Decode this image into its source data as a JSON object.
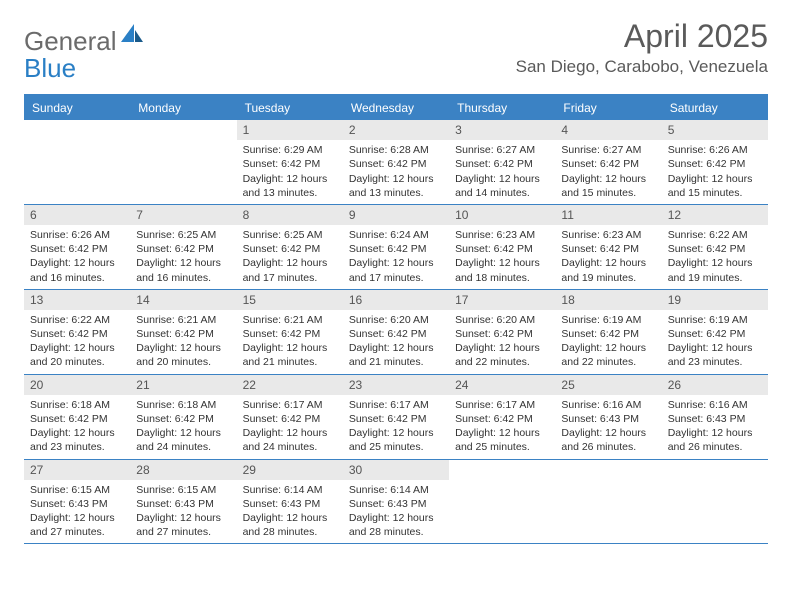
{
  "logo": {
    "text1": "General",
    "text2": "Blue"
  },
  "title": "April 2025",
  "location": "San Diego, Carabobo, Venezuela",
  "colors": {
    "header_bg": "#3b82c4",
    "header_text": "#ffffff",
    "daynum_bg": "#e9e9e9",
    "border": "#3b82c4",
    "logo_gray": "#6b6b6b",
    "logo_blue": "#2a7fc5"
  },
  "day_names": [
    "Sunday",
    "Monday",
    "Tuesday",
    "Wednesday",
    "Thursday",
    "Friday",
    "Saturday"
  ],
  "weeks": [
    [
      {
        "empty": true
      },
      {
        "empty": true
      },
      {
        "num": "1",
        "sunrise": "Sunrise: 6:29 AM",
        "sunset": "Sunset: 6:42 PM",
        "daylight": "Daylight: 12 hours and 13 minutes."
      },
      {
        "num": "2",
        "sunrise": "Sunrise: 6:28 AM",
        "sunset": "Sunset: 6:42 PM",
        "daylight": "Daylight: 12 hours and 13 minutes."
      },
      {
        "num": "3",
        "sunrise": "Sunrise: 6:27 AM",
        "sunset": "Sunset: 6:42 PM",
        "daylight": "Daylight: 12 hours and 14 minutes."
      },
      {
        "num": "4",
        "sunrise": "Sunrise: 6:27 AM",
        "sunset": "Sunset: 6:42 PM",
        "daylight": "Daylight: 12 hours and 15 minutes."
      },
      {
        "num": "5",
        "sunrise": "Sunrise: 6:26 AM",
        "sunset": "Sunset: 6:42 PM",
        "daylight": "Daylight: 12 hours and 15 minutes."
      }
    ],
    [
      {
        "num": "6",
        "sunrise": "Sunrise: 6:26 AM",
        "sunset": "Sunset: 6:42 PM",
        "daylight": "Daylight: 12 hours and 16 minutes."
      },
      {
        "num": "7",
        "sunrise": "Sunrise: 6:25 AM",
        "sunset": "Sunset: 6:42 PM",
        "daylight": "Daylight: 12 hours and 16 minutes."
      },
      {
        "num": "8",
        "sunrise": "Sunrise: 6:25 AM",
        "sunset": "Sunset: 6:42 PM",
        "daylight": "Daylight: 12 hours and 17 minutes."
      },
      {
        "num": "9",
        "sunrise": "Sunrise: 6:24 AM",
        "sunset": "Sunset: 6:42 PM",
        "daylight": "Daylight: 12 hours and 17 minutes."
      },
      {
        "num": "10",
        "sunrise": "Sunrise: 6:23 AM",
        "sunset": "Sunset: 6:42 PM",
        "daylight": "Daylight: 12 hours and 18 minutes."
      },
      {
        "num": "11",
        "sunrise": "Sunrise: 6:23 AM",
        "sunset": "Sunset: 6:42 PM",
        "daylight": "Daylight: 12 hours and 19 minutes."
      },
      {
        "num": "12",
        "sunrise": "Sunrise: 6:22 AM",
        "sunset": "Sunset: 6:42 PM",
        "daylight": "Daylight: 12 hours and 19 minutes."
      }
    ],
    [
      {
        "num": "13",
        "sunrise": "Sunrise: 6:22 AM",
        "sunset": "Sunset: 6:42 PM",
        "daylight": "Daylight: 12 hours and 20 minutes."
      },
      {
        "num": "14",
        "sunrise": "Sunrise: 6:21 AM",
        "sunset": "Sunset: 6:42 PM",
        "daylight": "Daylight: 12 hours and 20 minutes."
      },
      {
        "num": "15",
        "sunrise": "Sunrise: 6:21 AM",
        "sunset": "Sunset: 6:42 PM",
        "daylight": "Daylight: 12 hours and 21 minutes."
      },
      {
        "num": "16",
        "sunrise": "Sunrise: 6:20 AM",
        "sunset": "Sunset: 6:42 PM",
        "daylight": "Daylight: 12 hours and 21 minutes."
      },
      {
        "num": "17",
        "sunrise": "Sunrise: 6:20 AM",
        "sunset": "Sunset: 6:42 PM",
        "daylight": "Daylight: 12 hours and 22 minutes."
      },
      {
        "num": "18",
        "sunrise": "Sunrise: 6:19 AM",
        "sunset": "Sunset: 6:42 PM",
        "daylight": "Daylight: 12 hours and 22 minutes."
      },
      {
        "num": "19",
        "sunrise": "Sunrise: 6:19 AM",
        "sunset": "Sunset: 6:42 PM",
        "daylight": "Daylight: 12 hours and 23 minutes."
      }
    ],
    [
      {
        "num": "20",
        "sunrise": "Sunrise: 6:18 AM",
        "sunset": "Sunset: 6:42 PM",
        "daylight": "Daylight: 12 hours and 23 minutes."
      },
      {
        "num": "21",
        "sunrise": "Sunrise: 6:18 AM",
        "sunset": "Sunset: 6:42 PM",
        "daylight": "Daylight: 12 hours and 24 minutes."
      },
      {
        "num": "22",
        "sunrise": "Sunrise: 6:17 AM",
        "sunset": "Sunset: 6:42 PM",
        "daylight": "Daylight: 12 hours and 24 minutes."
      },
      {
        "num": "23",
        "sunrise": "Sunrise: 6:17 AM",
        "sunset": "Sunset: 6:42 PM",
        "daylight": "Daylight: 12 hours and 25 minutes."
      },
      {
        "num": "24",
        "sunrise": "Sunrise: 6:17 AM",
        "sunset": "Sunset: 6:42 PM",
        "daylight": "Daylight: 12 hours and 25 minutes."
      },
      {
        "num": "25",
        "sunrise": "Sunrise: 6:16 AM",
        "sunset": "Sunset: 6:43 PM",
        "daylight": "Daylight: 12 hours and 26 minutes."
      },
      {
        "num": "26",
        "sunrise": "Sunrise: 6:16 AM",
        "sunset": "Sunset: 6:43 PM",
        "daylight": "Daylight: 12 hours and 26 minutes."
      }
    ],
    [
      {
        "num": "27",
        "sunrise": "Sunrise: 6:15 AM",
        "sunset": "Sunset: 6:43 PM",
        "daylight": "Daylight: 12 hours and 27 minutes."
      },
      {
        "num": "28",
        "sunrise": "Sunrise: 6:15 AM",
        "sunset": "Sunset: 6:43 PM",
        "daylight": "Daylight: 12 hours and 27 minutes."
      },
      {
        "num": "29",
        "sunrise": "Sunrise: 6:14 AM",
        "sunset": "Sunset: 6:43 PM",
        "daylight": "Daylight: 12 hours and 28 minutes."
      },
      {
        "num": "30",
        "sunrise": "Sunrise: 6:14 AM",
        "sunset": "Sunset: 6:43 PM",
        "daylight": "Daylight: 12 hours and 28 minutes."
      },
      {
        "empty": true
      },
      {
        "empty": true
      },
      {
        "empty": true
      }
    ]
  ]
}
